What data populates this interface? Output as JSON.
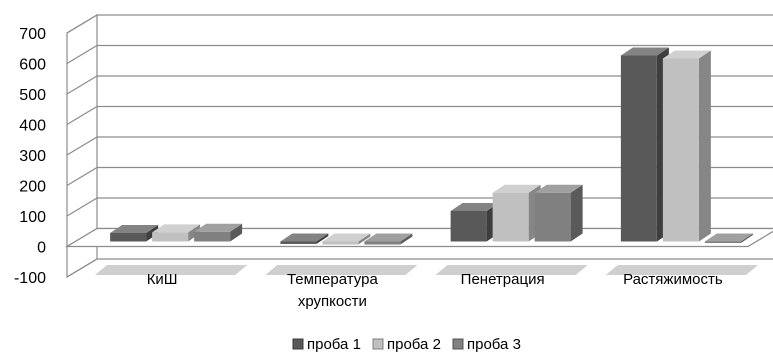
{
  "chart_data": {
    "type": "bar",
    "variant": "3d-clustered-column",
    "categories": [
      "КиШ",
      "Температура хрупкости",
      "Пенетрация",
      "Растяжимость"
    ],
    "category_lines": [
      [
        "КиШ"
      ],
      [
        "Температура",
        "хрупкости"
      ],
      [
        "Пенетрация"
      ],
      [
        "Растяжимость"
      ]
    ],
    "series": [
      {
        "name": "проба 1",
        "values": [
          28,
          -8,
          100,
          610
        ],
        "color": "#595959"
      },
      {
        "name": "проба 2",
        "values": [
          30,
          -10,
          160,
          600
        ],
        "color": "#c0c0c0"
      },
      {
        "name": "проба 3",
        "values": [
          32,
          -10,
          160,
          -5
        ],
        "color": "#808080"
      }
    ],
    "y_ticks": [
      -100,
      0,
      100,
      200,
      300,
      400,
      500,
      600,
      700
    ],
    "ylim": [
      -100,
      700
    ],
    "grid": true,
    "legend_position": "bottom"
  }
}
